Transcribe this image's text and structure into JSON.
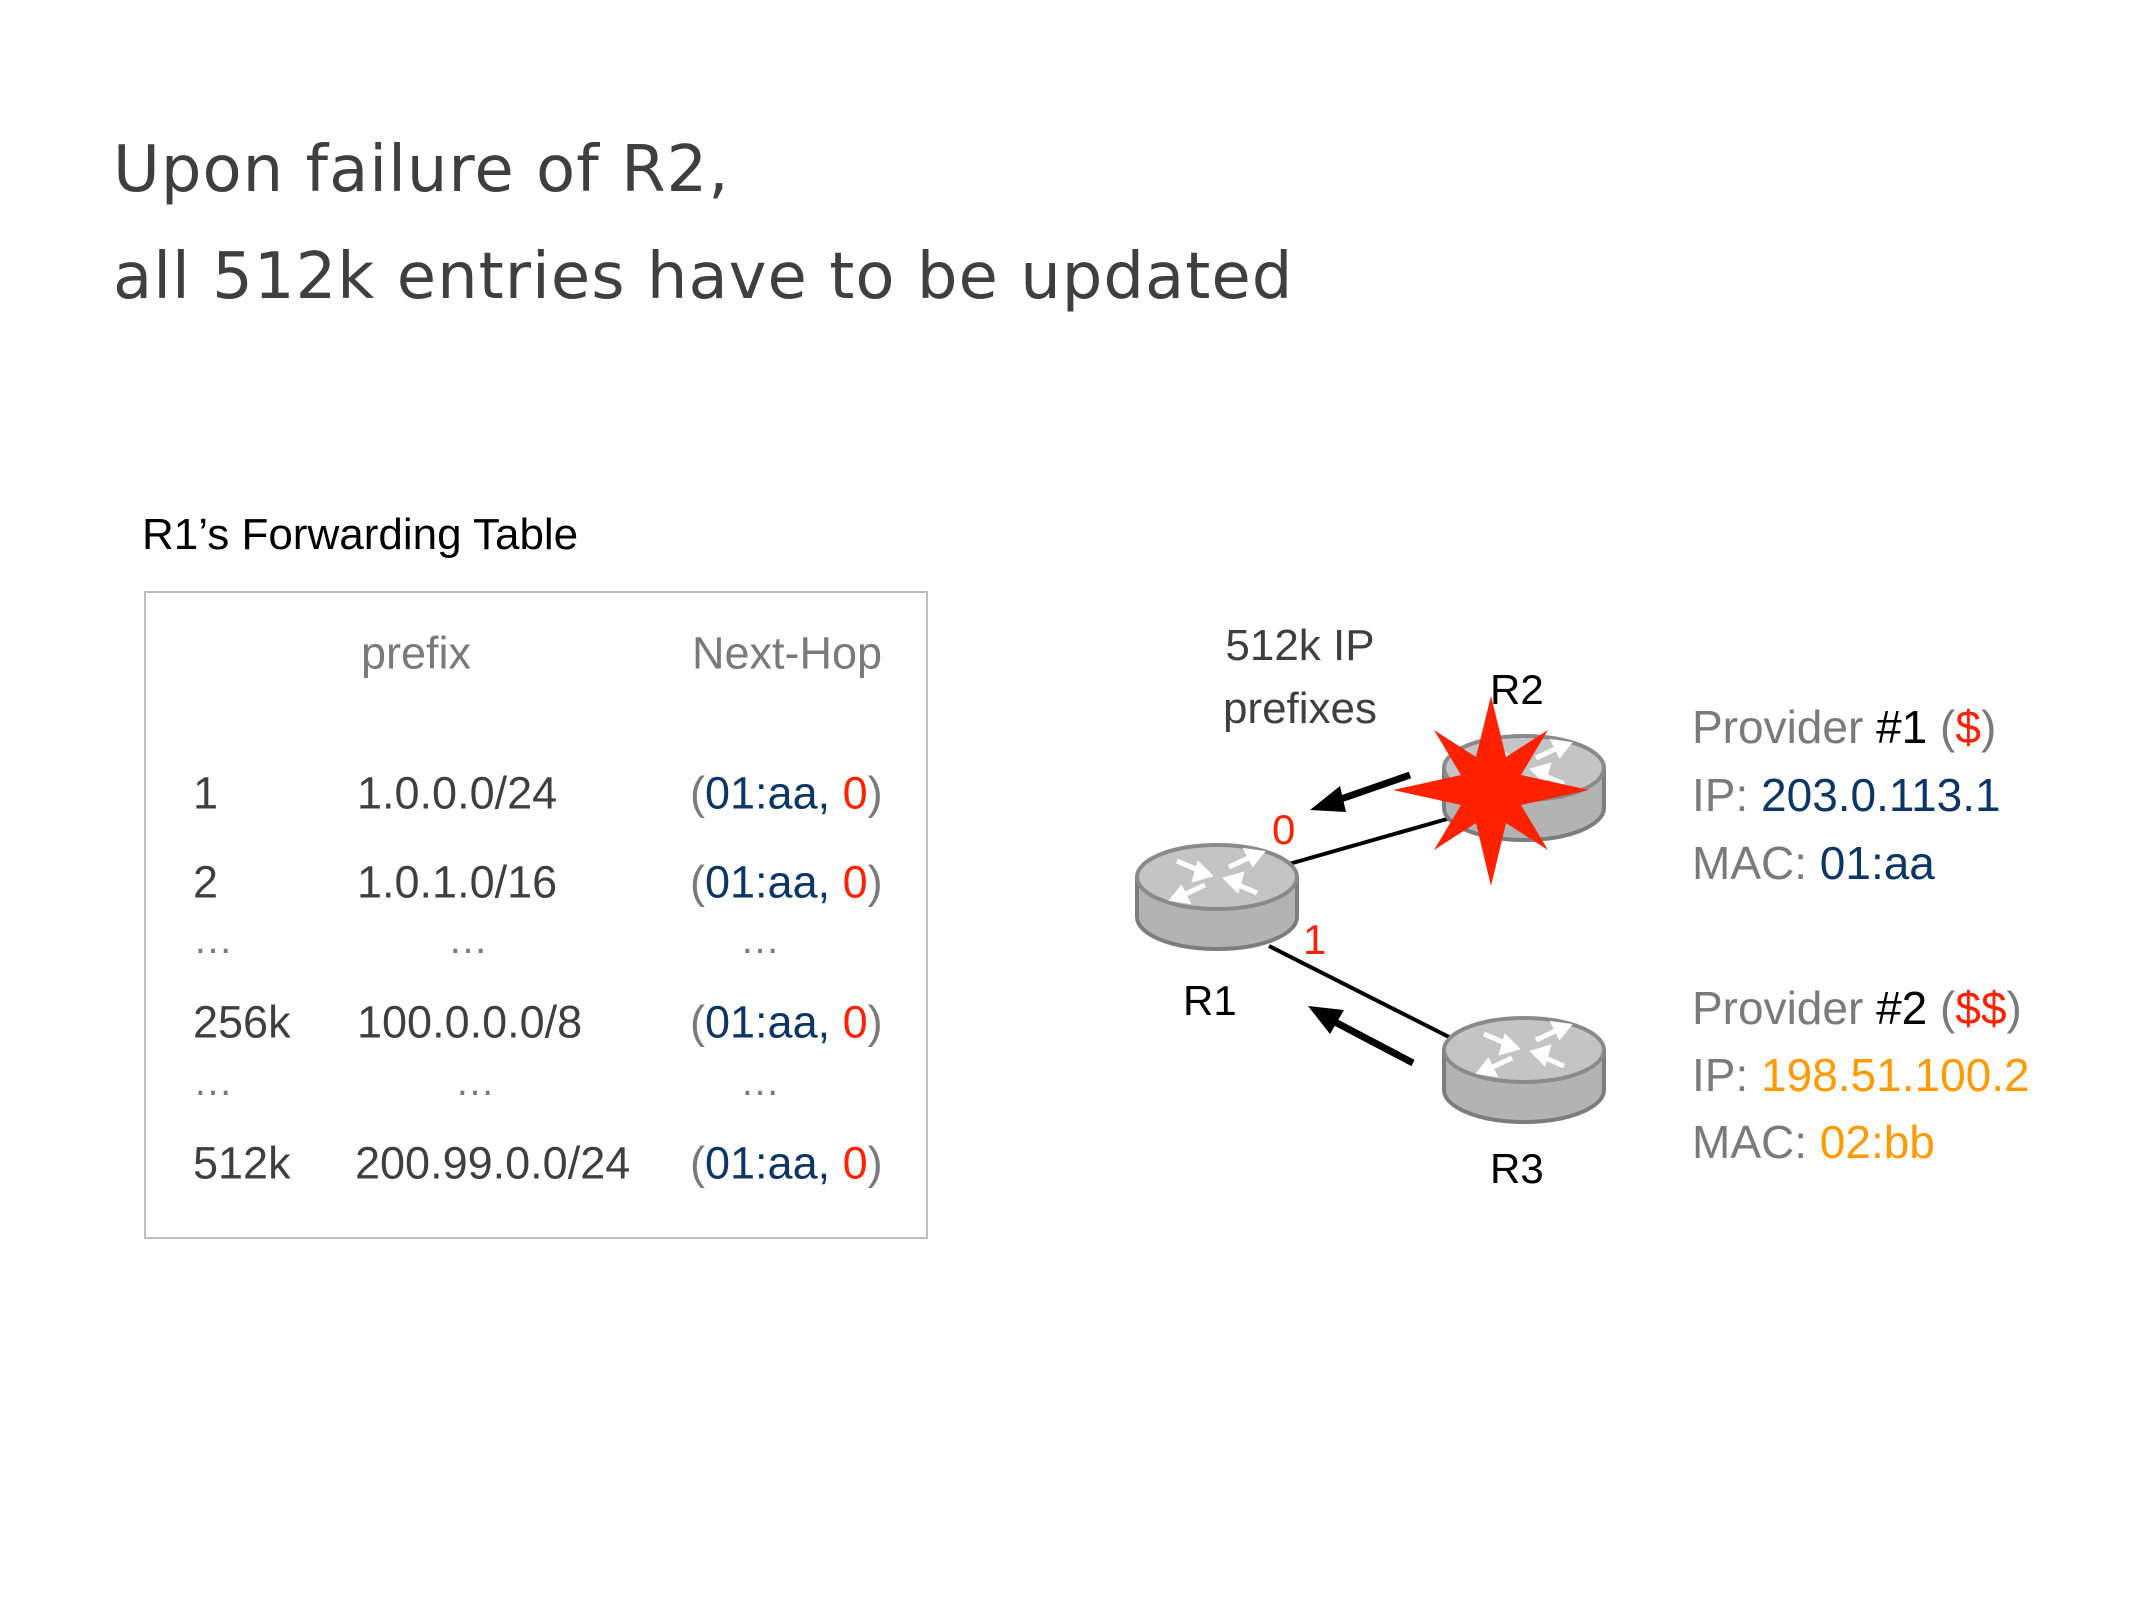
{
  "title": {
    "line1": "Upon failure of R2,",
    "line2": "all 512k entries have to be updated"
  },
  "table": {
    "caption": "R1’s Forwarding Table",
    "headers": {
      "index": "",
      "prefix": "prefix",
      "next_hop": "Next-Hop"
    },
    "rows": [
      {
        "index": "1",
        "prefix": "1.0.0.0/24",
        "mac": "01:aa",
        "port": "0"
      },
      {
        "index": "2",
        "prefix": "1.0.1.0/16",
        "mac": "01:aa",
        "port": "0"
      },
      {
        "index": "256k",
        "prefix": "100.0.0.0/8",
        "mac": "01:aa",
        "port": "0"
      },
      {
        "index": "512k",
        "prefix": "200.99.0.0/24",
        "mac": "01:aa",
        "port": "0"
      }
    ],
    "ellipsis": "…"
  },
  "diagram": {
    "routes_label_1": "512k IP",
    "routes_label_2": "prefixes",
    "routers": {
      "r1": "R1",
      "r2": "R2",
      "r3": "R3"
    },
    "ports": {
      "to_r2": "0",
      "to_r3": "1"
    },
    "failure_icon": "red-starburst-icon",
    "router_icon": "router-icon"
  },
  "providers": [
    {
      "label": "Provider ",
      "num": "#1",
      "cost": "$",
      "ip_label": "IP: ",
      "ip": "203.0.113.1",
      "mac_label": "MAC: ",
      "mac": "01:aa"
    },
    {
      "label": "Provider ",
      "num": "#2",
      "cost": "$$",
      "ip_label": "IP: ",
      "ip": "198.51.100.2",
      "mac_label": "MAC: ",
      "mac": "02:bb"
    }
  ],
  "colors": {
    "navy": "#0d3565",
    "red": "#ff2200",
    "orange": "#ff9a00",
    "gray": "#7a7a7a"
  }
}
